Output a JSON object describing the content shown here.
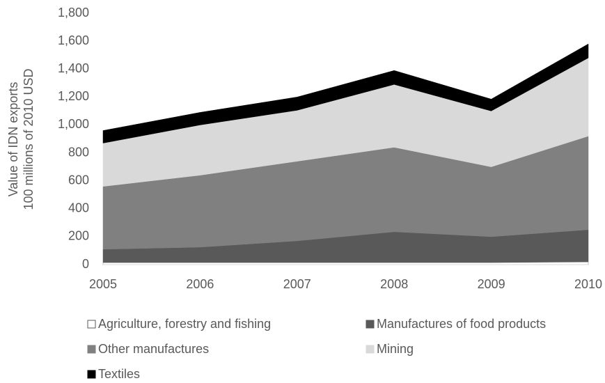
{
  "chart_data": {
    "type": "area",
    "stacked": true,
    "ylabel": [
      "Value of IDN exports",
      "100 millions of 2010 USD"
    ],
    "categories": [
      "2005",
      "2006",
      "2007",
      "2008",
      "2009",
      "2010"
    ],
    "series": [
      {
        "name": "Agriculture, forestry and fishing",
        "color": "#ffffff",
        "values": [
          15,
          15,
          15,
          15,
          15,
          20
        ]
      },
      {
        "name": "Manufactures of food products",
        "color": "#595959",
        "values": [
          95,
          110,
          155,
          220,
          185,
          230
        ]
      },
      {
        "name": "Other manufactures",
        "color": "#808080",
        "values": [
          450,
          515,
          570,
          605,
          500,
          670
        ]
      },
      {
        "name": "Mining",
        "color": "#d9d9d9",
        "values": [
          310,
          360,
          365,
          450,
          400,
          560
        ]
      },
      {
        "name": "Textiles",
        "color": "#000000",
        "values": [
          90,
          90,
          95,
          100,
          85,
          100
        ]
      }
    ],
    "ylim": [
      0,
      1800
    ],
    "yticks": [
      0,
      200,
      400,
      600,
      800,
      {
        "value": 1000,
        "label": "1,000"
      },
      {
        "value": 1200,
        "label": "1,200"
      },
      {
        "value": 1400,
        "label": "1,400"
      },
      {
        "value": 1600,
        "label": "1,600"
      },
      {
        "value": 1800,
        "label": "1,800"
      }
    ],
    "grid": false
  }
}
